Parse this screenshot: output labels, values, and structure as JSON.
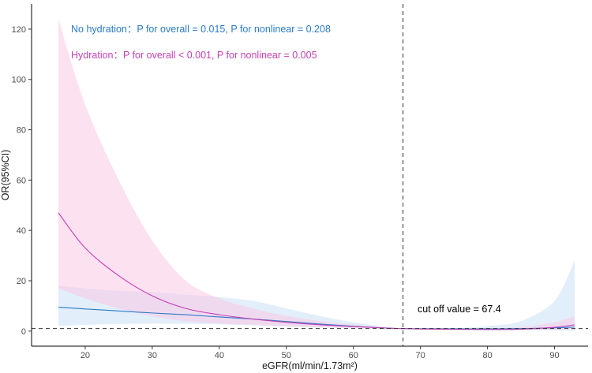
{
  "chart_data": {
    "type": "line",
    "title": "",
    "xlabel": "eGFR(ml/min/1.73m²)",
    "ylabel": "OR(95%CI)",
    "xlim": [
      12,
      95
    ],
    "ylim": [
      -6,
      130
    ],
    "x_ticks": [
      20,
      30,
      40,
      50,
      60,
      70,
      80,
      90
    ],
    "y_ticks": [
      0,
      20,
      40,
      60,
      80,
      100,
      120
    ],
    "grid": false,
    "reference_lines": {
      "vertical_x": 67.4,
      "horizontal_y": 1
    },
    "annotations": {
      "no_hydration": "No hydration：P for overall = 0.015, P for nonlinear = 0.208",
      "hydration": "Hydration：P for overall < 0.001, P for nonlinear = 0.005",
      "cutoff": "cut off value = 67.4"
    },
    "series": [
      {
        "color": "#2b7bc8",
        "band_color": "#cfe3f5",
        "x": [
          16,
          20,
          25,
          30,
          35,
          40,
          45,
          50,
          55,
          60,
          65,
          67.4,
          70,
          75,
          80,
          85,
          90,
          93
        ],
        "y": [
          9.5,
          8.8,
          8.0,
          7.2,
          6.5,
          5.6,
          4.8,
          3.8,
          2.8,
          1.9,
          1.2,
          1.0,
          0.95,
          0.9,
          0.9,
          1.0,
          1.3,
          1.6
        ],
        "lower": [
          2.0,
          2.5,
          2.8,
          3.0,
          2.9,
          2.7,
          2.3,
          1.8,
          1.4,
          1.1,
          0.95,
          0.9,
          0.7,
          0.45,
          0.35,
          0.3,
          0.25,
          0.2
        ],
        "upper": [
          18.0,
          17.0,
          16.0,
          15.5,
          14.5,
          13.5,
          12.0,
          9.0,
          6.0,
          3.5,
          1.6,
          1.1,
          1.0,
          1.2,
          2.0,
          4.0,
          12.0,
          28.0
        ]
      },
      {
        "color": "#c43fb5",
        "band_color": "#f9c9e6",
        "x": [
          16,
          20,
          25,
          30,
          35,
          40,
          45,
          50,
          55,
          60,
          65,
          67.4,
          70,
          75,
          80,
          85,
          90,
          93
        ],
        "y": [
          47.0,
          33.0,
          22.0,
          14.0,
          9.0,
          6.5,
          4.8,
          3.5,
          2.5,
          1.8,
          1.2,
          1.0,
          0.85,
          0.7,
          0.65,
          0.75,
          1.5,
          2.5
        ],
        "lower": [
          17.0,
          13.0,
          9.0,
          6.0,
          4.0,
          3.0,
          2.5,
          2.0,
          1.6,
          1.3,
          1.05,
          0.95,
          0.65,
          0.5,
          0.45,
          0.5,
          0.6,
          0.7
        ],
        "upper": [
          124.0,
          90.0,
          60.0,
          36.0,
          20.0,
          13.0,
          9.0,
          6.0,
          4.0,
          2.5,
          1.3,
          1.05,
          1.0,
          1.05,
          1.2,
          1.6,
          3.5,
          6.0
        ]
      }
    ]
  }
}
